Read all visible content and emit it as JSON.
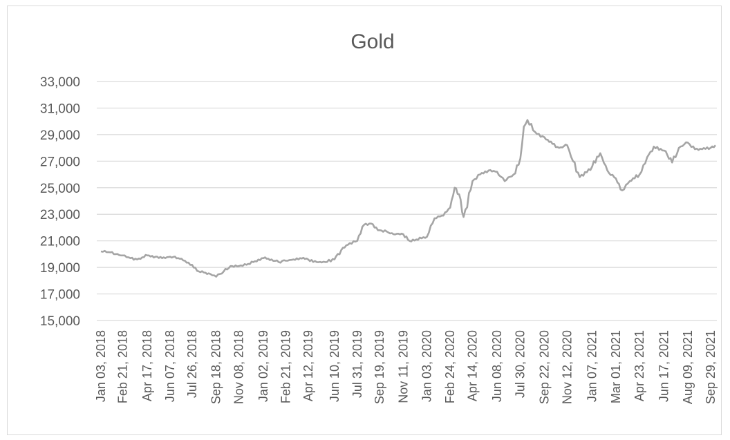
{
  "chart_data": {
    "type": "line",
    "title": "Gold",
    "xlabel": "",
    "ylabel": "",
    "ylim": [
      15000,
      33000
    ],
    "yticks": [
      "15,000",
      "17,000",
      "19,000",
      "21,000",
      "23,000",
      "25,000",
      "27,000",
      "29,000",
      "31,000",
      "33,000"
    ],
    "ytick_values": [
      15000,
      17000,
      19000,
      21000,
      23000,
      25000,
      27000,
      29000,
      31000,
      33000
    ],
    "x_tick_labels": [
      "Jan 03, 2018",
      "Feb 21, 2018",
      "Apr 17, 2018",
      "Jun 07, 2018",
      "Jul 26, 2018",
      "Sep 18, 2018",
      "Nov 08, 2018",
      "Jan 02, 2019",
      "Feb 21, 2019",
      "Apr 12, 2019",
      "Jun 10, 2019",
      "Jul 31, 2019",
      "Sep 19, 2019",
      "Nov 11, 2019",
      "Jan 03, 2020",
      "Feb 24, 2020",
      "Apr 14, 2020",
      "Jun 08, 2020",
      "Jul 30, 2020",
      "Sep 22, 2020",
      "Nov 12, 2020",
      "Jan 07, 2021",
      "Mar 01, 2021",
      "Apr 23, 2021",
      "Jun 17, 2021",
      "Aug 09, 2021",
      "Sep 29, 2021"
    ],
    "grid": true,
    "legend": "none",
    "series_color": "#a5a5a5",
    "series": [
      {
        "x": [
          "Jan 03, 2018",
          "Jan 20, 2018",
          "Feb 05, 2018",
          "Feb 21, 2018",
          "Mar 10, 2018",
          "Mar 25, 2018",
          "Apr 17, 2018",
          "May 05, 2018",
          "May 20, 2018",
          "Jun 07, 2018",
          "Jun 25, 2018",
          "Jul 10, 2018",
          "Jul 26, 2018",
          "Aug 10, 2018",
          "Aug 25, 2018",
          "Sep 05, 2018",
          "Sep 18, 2018",
          "Oct 05, 2018",
          "Oct 20, 2018",
          "Nov 08, 2018",
          "Nov 25, 2018",
          "Dec 10, 2018",
          "Jan 02, 2019",
          "Jan 20, 2019",
          "Feb 05, 2019",
          "Feb 21, 2019",
          "Mar 10, 2019",
          "Mar 25, 2019",
          "Apr 12, 2019",
          "May 01, 2019",
          "May 20, 2019",
          "Jun 10, 2019",
          "Jun 25, 2019",
          "Jul 10, 2019",
          "Jul 31, 2019",
          "Aug 15, 2019",
          "Aug 31, 2019",
          "Sep 19, 2019",
          "Oct 05, 2019",
          "Oct 20, 2019",
          "Nov 11, 2019",
          "Nov 25, 2019",
          "Dec 10, 2019",
          "Jan 03, 2020",
          "Jan 20, 2020",
          "Feb 05, 2020",
          "Feb 24, 2020",
          "Mar 05, 2020",
          "Mar 15, 2020",
          "Mar 25, 2020",
          "Apr 14, 2020",
          "May 01, 2020",
          "May 20, 2020",
          "Jun 08, 2020",
          "Jun 25, 2020",
          "Jul 15, 2020",
          "Jul 30, 2020",
          "Aug 07, 2020",
          "Aug 15, 2020",
          "Sep 01, 2020",
          "Sep 22, 2020",
          "Oct 10, 2020",
          "Oct 25, 2020",
          "Nov 12, 2020",
          "Nov 25, 2020",
          "Dec 10, 2020",
          "Jan 07, 2021",
          "Jan 25, 2021",
          "Feb 10, 2021",
          "Mar 01, 2021",
          "Mar 15, 2021",
          "Apr 01, 2021",
          "Apr 23, 2021",
          "May 10, 2021",
          "May 25, 2021",
          "Jun 17, 2021",
          "Jul 05, 2021",
          "Jul 20, 2021",
          "Aug 09, 2021",
          "Aug 25, 2021",
          "Sep 10, 2021",
          "Sep 29, 2021",
          "Oct 10, 2021"
        ],
        "values": [
          20200,
          20150,
          20000,
          19900,
          19700,
          19600,
          19900,
          19800,
          19700,
          19800,
          19700,
          19500,
          19200,
          18700,
          18600,
          18500,
          18300,
          18700,
          19100,
          19100,
          19200,
          19400,
          19700,
          19600,
          19400,
          19500,
          19600,
          19700,
          19600,
          19400,
          19400,
          19600,
          20300,
          20700,
          21000,
          22200,
          22300,
          21800,
          21700,
          21500,
          21500,
          21000,
          21100,
          21300,
          22700,
          22900,
          23500,
          25000,
          24500,
          22800,
          25500,
          26000,
          26300,
          26200,
          25500,
          26000,
          27200,
          29600,
          30100,
          29200,
          28800,
          28300,
          28000,
          28200,
          27000,
          25800,
          26600,
          27600,
          26300,
          25700,
          24800,
          25500,
          26000,
          27300,
          28100,
          27800,
          26900,
          28000,
          28400,
          27900,
          27900,
          28000,
          28200
        ]
      }
    ]
  }
}
